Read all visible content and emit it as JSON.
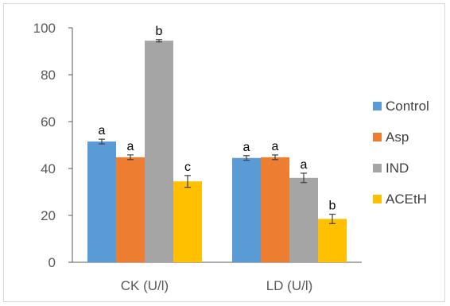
{
  "chart_data": {
    "type": "bar",
    "categories": [
      "CK (U/l)",
      "LD (U/l)"
    ],
    "series": [
      {
        "name": "Control",
        "color": "#5B9BD5",
        "values": [
          51.5,
          44.5
        ],
        "errors": [
          1.0,
          1.0
        ],
        "labels": [
          "a",
          "a"
        ]
      },
      {
        "name": "Asp",
        "color": "#ED7D31",
        "values": [
          44.8,
          44.8
        ],
        "errors": [
          1.0,
          1.0
        ],
        "labels": [
          "a",
          "a"
        ]
      },
      {
        "name": "IND",
        "color": "#A5A5A5",
        "values": [
          94.5,
          36.0
        ],
        "errors": [
          0.5,
          2.0
        ],
        "labels": [
          "b",
          "a"
        ]
      },
      {
        "name": "ACEtH",
        "color": "#FFC000",
        "values": [
          34.5,
          18.5
        ],
        "errors": [
          2.5,
          2.0
        ],
        "labels": [
          "c",
          "b"
        ]
      }
    ],
    "ylim": [
      0,
      100
    ],
    "yticks": [
      0,
      20,
      40,
      60,
      80,
      100
    ],
    "title": "",
    "xlabel": "",
    "ylabel": "",
    "legend_position": "right",
    "grid": false
  }
}
